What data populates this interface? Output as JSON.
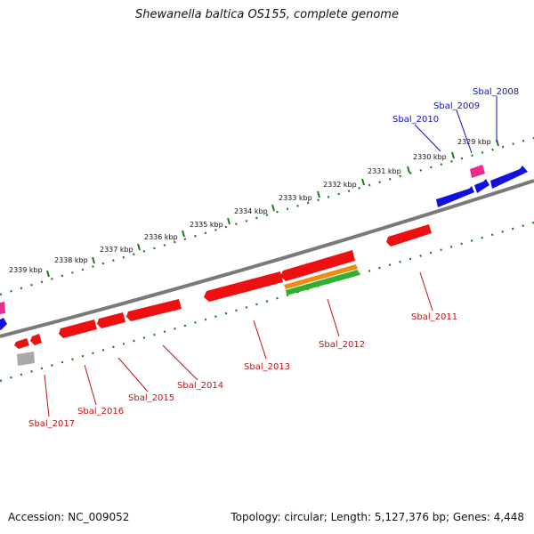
{
  "title": "Shewanella baltica OS155, complete genome",
  "accession": "Accession: NC_009052",
  "summary": "Topology: circular; Length: 5,127,376 bp; Genes: 4,448",
  "colors": {
    "backbone": "#7a7a7a",
    "tick": "#1c7a1c",
    "forward_label": "#1010c8",
    "reverse_label": "#c81010",
    "red_gene": "#ee1010",
    "blue_gene": "#1212e0",
    "pink_gene": "#ee2a8a",
    "gray_gene": "#a8a8a8",
    "orange_track": "#f08a10",
    "green_track": "#30b030"
  },
  "kbp_ticks": [
    {
      "label": "2329 kbp"
    },
    {
      "label": "2330 kbp"
    },
    {
      "label": "2331 kbp"
    },
    {
      "label": "2332 kbp"
    },
    {
      "label": "2333 kbp"
    },
    {
      "label": "2334 kbp"
    },
    {
      "label": "2335 kbp"
    },
    {
      "label": "2336 kbp"
    },
    {
      "label": "2337 kbp"
    },
    {
      "label": "2338 kbp"
    },
    {
      "label": "2339 kbp"
    }
  ],
  "forward_gene_labels": [
    {
      "label": "Sbal_2008"
    },
    {
      "label": "Sbal_2009"
    },
    {
      "label": "Sbal_2010"
    }
  ],
  "reverse_gene_labels": [
    {
      "label": "Sbal_2011"
    },
    {
      "label": "Sbal_2012"
    },
    {
      "label": "Sbal_2013"
    },
    {
      "label": "Sbal_2014"
    },
    {
      "label": "Sbal_2015"
    },
    {
      "label": "Sbal_2016"
    },
    {
      "label": "Sbal_2017"
    }
  ]
}
